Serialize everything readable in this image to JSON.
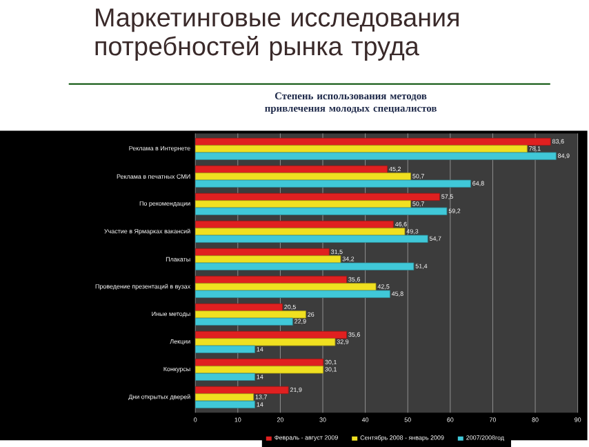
{
  "chart_data": {
    "type": "bar",
    "orientation": "horizontal",
    "title": "Маркетинговые исследования потребностей рынка труда",
    "subtitle": "Степень использования методов привлечения молодых специалистов",
    "categories": [
      "Реклама в Интернете",
      "Реклама в печатных СМИ",
      "По рекомендации",
      "Участие в Ярмарках вакансий",
      "Плакаты",
      "Проведение презентаций в вузах",
      "Иные методы",
      "Лекции",
      "Конкурсы",
      "Дни открытых дверей"
    ],
    "series": [
      {
        "name": "Февраль - август 2009",
        "color": "#e02020",
        "values": [
          83.6,
          45.2,
          57.5,
          46.6,
          31.5,
          35.6,
          20.5,
          35.6,
          30.1,
          21.9
        ],
        "value_labels": [
          "83,6",
          "45,2",
          "57,5",
          "46,6",
          "31,5",
          "35,6",
          "20,5",
          "35,6",
          "30,1",
          "21,9"
        ]
      },
      {
        "name": "Сентябрь 2008 - январь 2009",
        "color": "#f0e020",
        "values": [
          78.1,
          50.7,
          50.7,
          49.3,
          34.2,
          42.5,
          26,
          32.9,
          30.1,
          13.7
        ],
        "value_labels": [
          "78,1",
          "50,7",
          "50,7",
          "49,3",
          "34,2",
          "42,5",
          "26",
          "32,9",
          "30,1",
          "13,7"
        ]
      },
      {
        "name": "2007/2008год",
        "color": "#40c8d8",
        "values": [
          84.9,
          64.8,
          59.2,
          54.7,
          51.4,
          45.8,
          22.9,
          14,
          14,
          14
        ],
        "value_labels": [
          "84,9",
          "64,8",
          "59,2",
          "54,7",
          "51,4",
          "45,8",
          "22,9",
          "14",
          "14",
          "14"
        ]
      }
    ],
    "xlim": [
      0,
      90
    ],
    "xticks": [
      0,
      10,
      20,
      30,
      40,
      50,
      60,
      70,
      80,
      90
    ],
    "grid": "x",
    "legend": "bottom"
  }
}
